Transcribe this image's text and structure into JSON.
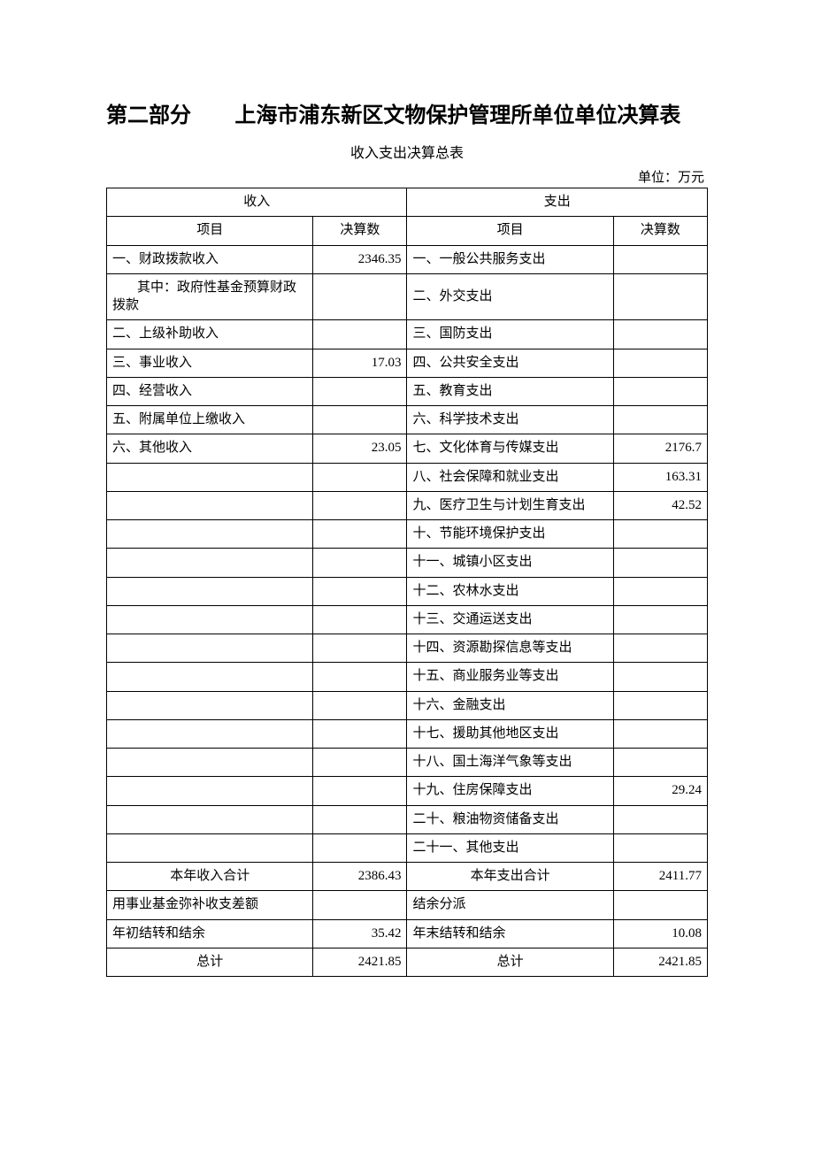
{
  "title_part1": "第二部分",
  "title_part2": "上海市浦东新区文物保护管理所单位单位决算表",
  "subtitle": "收入支出决算总表",
  "unit_label": "单位：万元",
  "columns": {
    "income_group": "收入",
    "expense_group": "支出",
    "item": "项目",
    "amount": "决算数"
  },
  "income_rows": [
    {
      "label": "一、财政拨款收入",
      "value": "2346.35",
      "align": "left"
    },
    {
      "label": "其中：政府性基金预算财政拨款",
      "value": "",
      "align": "left",
      "indent": true,
      "wrap": true
    },
    {
      "label": "二、上级补助收入",
      "value": "",
      "align": "left"
    },
    {
      "label": "三、事业收入",
      "value": "17.03",
      "align": "left"
    },
    {
      "label": "四、经营收入",
      "value": "",
      "align": "left"
    },
    {
      "label": "五、附属单位上缴收入",
      "value": "",
      "align": "left"
    },
    {
      "label": "六、其他收入",
      "value": "23.05",
      "align": "left"
    },
    {
      "label": "",
      "value": ""
    },
    {
      "label": "",
      "value": ""
    },
    {
      "label": "",
      "value": ""
    },
    {
      "label": "",
      "value": ""
    },
    {
      "label": "",
      "value": ""
    },
    {
      "label": "",
      "value": ""
    },
    {
      "label": "",
      "value": ""
    },
    {
      "label": "",
      "value": ""
    },
    {
      "label": "",
      "value": ""
    },
    {
      "label": "",
      "value": ""
    },
    {
      "label": "",
      "value": ""
    },
    {
      "label": "",
      "value": ""
    },
    {
      "label": "",
      "value": ""
    },
    {
      "label": "",
      "value": ""
    }
  ],
  "expense_rows": [
    {
      "label": "一、一般公共服务支出",
      "value": ""
    },
    {
      "label": "二、外交支出",
      "value": ""
    },
    {
      "label": "三、国防支出",
      "value": ""
    },
    {
      "label": "四、公共安全支出",
      "value": ""
    },
    {
      "label": "五、教育支出",
      "value": ""
    },
    {
      "label": "六、科学技术支出",
      "value": ""
    },
    {
      "label": "七、文化体育与传媒支出",
      "value": "2176.7"
    },
    {
      "label": "八、社会保障和就业支出",
      "value": "163.31"
    },
    {
      "label": "九、医疗卫生与计划生育支出",
      "value": "42.52"
    },
    {
      "label": "十、节能环境保护支出",
      "value": ""
    },
    {
      "label": "十一、城镇小区支出",
      "value": ""
    },
    {
      "label": "十二、农林水支出",
      "value": ""
    },
    {
      "label": "十三、交通运送支出",
      "value": ""
    },
    {
      "label": "十四、资源勘探信息等支出",
      "value": ""
    },
    {
      "label": "十五、商业服务业等支出",
      "value": ""
    },
    {
      "label": "十六、金融支出",
      "value": ""
    },
    {
      "label": "十七、援助其他地区支出",
      "value": ""
    },
    {
      "label": "十八、国土海洋气象等支出",
      "value": ""
    },
    {
      "label": "十九、住房保障支出",
      "value": "29.24"
    },
    {
      "label": "二十、粮油物资储备支出",
      "value": ""
    },
    {
      "label": "二十一、其他支出",
      "value": ""
    }
  ],
  "summary": {
    "income_total_label": "本年收入合计",
    "income_total": "2386.43",
    "expense_total_label": "本年支出合计",
    "expense_total": "2411.77",
    "fund_cover_label": "用事业基金弥补收支差额",
    "fund_cover": "",
    "surplus_dist_label": "结余分派",
    "surplus_dist": "",
    "year_start_label": "年初结转和结余",
    "year_start": "35.42",
    "year_end_label": "年末结转和结余",
    "year_end": "10.08",
    "grand_total_left_label": "总计",
    "grand_total_left": "2421.85",
    "grand_total_right_label": "总计",
    "grand_total_right": "2421.85"
  }
}
